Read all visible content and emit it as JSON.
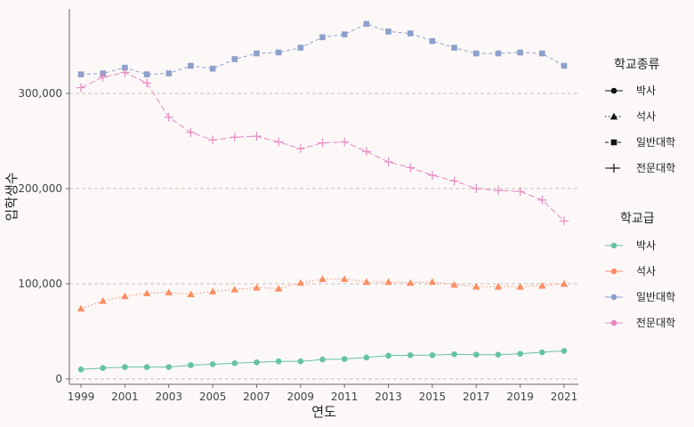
{
  "chart_data": {
    "type": "line",
    "xlabel": "연도",
    "ylabel": "입학생수",
    "xlim": [
      1999,
      2021
    ],
    "ylim": [
      0,
      390000
    ],
    "x_ticks": [
      1999,
      2001,
      2003,
      2005,
      2007,
      2009,
      2011,
      2013,
      2015,
      2017,
      2019,
      2021
    ],
    "x_tick_labels": [
      "1999",
      "2001",
      "2003",
      "2005",
      "2007",
      "2009",
      "2011",
      "2013",
      "2015",
      "2017",
      "2019",
      "2021"
    ],
    "y_ticks": [
      0,
      100000,
      200000,
      300000
    ],
    "y_tick_labels": [
      "0",
      "100,000",
      "200,000",
      "300,000"
    ],
    "grid": "horizontal dashed",
    "legend_placement": "right",
    "x": [
      1999,
      2000,
      2001,
      2002,
      2003,
      2004,
      2005,
      2006,
      2007,
      2008,
      2009,
      2010,
      2011,
      2012,
      2013,
      2014,
      2015,
      2016,
      2017,
      2018,
      2019,
      2020,
      2021
    ],
    "series": [
      {
        "name": "박사",
        "color": "#66c2a5",
        "marker": "circle",
        "linetype": "solid",
        "values": [
          10000,
          11500,
          12500,
          12500,
          12500,
          14500,
          15500,
          16500,
          17500,
          18500,
          18500,
          20500,
          21000,
          22500,
          24500,
          25000,
          25000,
          26000,
          25500,
          25500,
          26500,
          28000,
          29500
        ]
      },
      {
        "name": "석사",
        "color": "#fc8d62",
        "marker": "triangle",
        "linetype": "dotted",
        "values": [
          74000,
          82000,
          87000,
          90000,
          91000,
          89000,
          92000,
          94000,
          96000,
          95000,
          101000,
          105000,
          105000,
          102000,
          102000,
          101000,
          102000,
          99000,
          97000,
          97000,
          97000,
          98000,
          100000
        ]
      },
      {
        "name": "일반대학",
        "color": "#8da0cb",
        "marker": "square",
        "linetype": "dashed",
        "values": [
          320000,
          321000,
          327000,
          320000,
          321000,
          329000,
          326000,
          336000,
          342000,
          343000,
          348000,
          359000,
          362000,
          373000,
          365000,
          363000,
          355000,
          348000,
          342000,
          342000,
          343000,
          342000,
          329000
        ]
      },
      {
        "name": "전문대학",
        "color": "#e78ac3",
        "marker": "plus",
        "linetype": "longdash",
        "values": [
          306000,
          317000,
          322000,
          311000,
          275000,
          259000,
          251000,
          254000,
          255000,
          249000,
          242000,
          248000,
          249000,
          239000,
          228000,
          222000,
          214000,
          208000,
          200000,
          198000,
          197000,
          188000,
          166000
        ]
      }
    ],
    "legends": [
      {
        "title": "학교종류",
        "entries": [
          {
            "label": "박사",
            "marker": "circle",
            "linetype": "solid"
          },
          {
            "label": "석사",
            "marker": "triangle",
            "linetype": "dotted"
          },
          {
            "label": "일반대학",
            "marker": "square",
            "linetype": "dashed"
          },
          {
            "label": "전문대학",
            "marker": "plus",
            "linetype": "longdash"
          }
        ]
      },
      {
        "title": "학교급",
        "entries": [
          {
            "label": "박사",
            "color": "#66c2a5"
          },
          {
            "label": "석사",
            "color": "#fc8d62"
          },
          {
            "label": "일반대학",
            "color": "#8da0cb"
          },
          {
            "label": "전문대학",
            "color": "#e78ac3"
          }
        ]
      }
    ]
  }
}
